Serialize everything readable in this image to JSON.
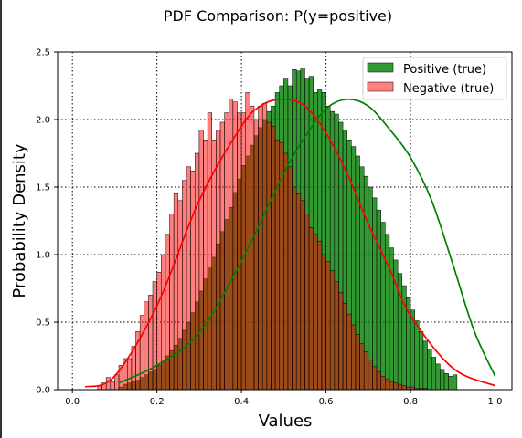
{
  "chart_data": {
    "type": "bar",
    "title": "PDF Comparison: P(y=positive)",
    "xlabel": "Values",
    "ylabel": "Probability Density",
    "xlim": [
      -0.035,
      1.04
    ],
    "ylim": [
      0,
      2.5
    ],
    "xticks": [
      "0.0",
      "0.2",
      "0.4",
      "0.6",
      "0.8",
      "1.0"
    ],
    "yticks": [
      "0.0",
      "0.5",
      "1.0",
      "1.5",
      "2.0",
      "2.5"
    ],
    "grid": true,
    "grid_style": "dotted",
    "legend_position": "top-right",
    "bin_width": 0.01,
    "series": [
      {
        "name": "Positive (true)",
        "color": "#008000",
        "bin_start": 0.11,
        "values": [
          0.02,
          0.04,
          0.05,
          0.06,
          0.07,
          0.09,
          0.11,
          0.13,
          0.15,
          0.18,
          0.21,
          0.25,
          0.29,
          0.33,
          0.38,
          0.44,
          0.5,
          0.57,
          0.65,
          0.73,
          0.82,
          0.9,
          0.98,
          1.08,
          1.17,
          1.26,
          1.35,
          1.46,
          1.56,
          1.66,
          1.73,
          1.81,
          1.88,
          1.94,
          2.0,
          2.06,
          2.1,
          2.2,
          2.25,
          2.3,
          2.25,
          2.37,
          2.36,
          2.38,
          2.3,
          2.32,
          2.2,
          2.22,
          2.2,
          2.1,
          2.06,
          2.04,
          1.98,
          1.92,
          1.85,
          1.8,
          1.73,
          1.65,
          1.58,
          1.5,
          1.42,
          1.33,
          1.24,
          1.15,
          1.05,
          0.96,
          0.86,
          0.77,
          0.68,
          0.59,
          0.51,
          0.43,
          0.36,
          0.3,
          0.24,
          0.19,
          0.15,
          0.12,
          0.1,
          0.11
        ],
        "kde": [
          [
            0.11,
            0.05
          ],
          [
            0.2,
            0.18
          ],
          [
            0.3,
            0.42
          ],
          [
            0.4,
            0.95
          ],
          [
            0.5,
            1.6
          ],
          [
            0.55,
            1.87
          ],
          [
            0.6,
            2.08
          ],
          [
            0.65,
            2.15
          ],
          [
            0.7,
            2.1
          ],
          [
            0.75,
            1.93
          ],
          [
            0.8,
            1.72
          ],
          [
            0.85,
            1.4
          ],
          [
            0.9,
            0.93
          ],
          [
            0.95,
            0.44
          ],
          [
            1.0,
            0.1
          ]
        ]
      },
      {
        "name": "Negative (true)",
        "color": "#ff0000",
        "bin_start": 0.06,
        "values": [
          0.03,
          0.05,
          0.09,
          0.06,
          0.11,
          0.18,
          0.23,
          0.23,
          0.32,
          0.43,
          0.55,
          0.65,
          0.7,
          0.8,
          0.87,
          1.0,
          1.15,
          1.3,
          1.45,
          1.4,
          1.55,
          1.65,
          1.62,
          1.75,
          1.92,
          1.85,
          2.05,
          1.85,
          1.92,
          1.98,
          2.05,
          2.15,
          2.13,
          2.05,
          2.05,
          2.2,
          2.1,
          2.0,
          2.1,
          2.12,
          1.98,
          1.95,
          1.85,
          1.83,
          1.75,
          1.65,
          1.5,
          1.45,
          1.4,
          1.3,
          1.2,
          1.15,
          1.1,
          1.0,
          0.95,
          0.88,
          0.8,
          0.72,
          0.64,
          0.56,
          0.48,
          0.41,
          0.34,
          0.28,
          0.22,
          0.17,
          0.13,
          0.1,
          0.08,
          0.06,
          0.05,
          0.04,
          0.03,
          0.02,
          0.02,
          0.01,
          0.01,
          0.01
        ],
        "kde": [
          [
            0.03,
            0.02
          ],
          [
            0.1,
            0.1
          ],
          [
            0.2,
            0.62
          ],
          [
            0.3,
            1.4
          ],
          [
            0.4,
            1.95
          ],
          [
            0.45,
            2.11
          ],
          [
            0.5,
            2.15
          ],
          [
            0.55,
            2.1
          ],
          [
            0.6,
            1.9
          ],
          [
            0.65,
            1.6
          ],
          [
            0.7,
            1.23
          ],
          [
            0.75,
            0.9
          ],
          [
            0.8,
            0.55
          ],
          [
            0.9,
            0.16
          ],
          [
            1.0,
            0.03
          ]
        ]
      }
    ]
  }
}
